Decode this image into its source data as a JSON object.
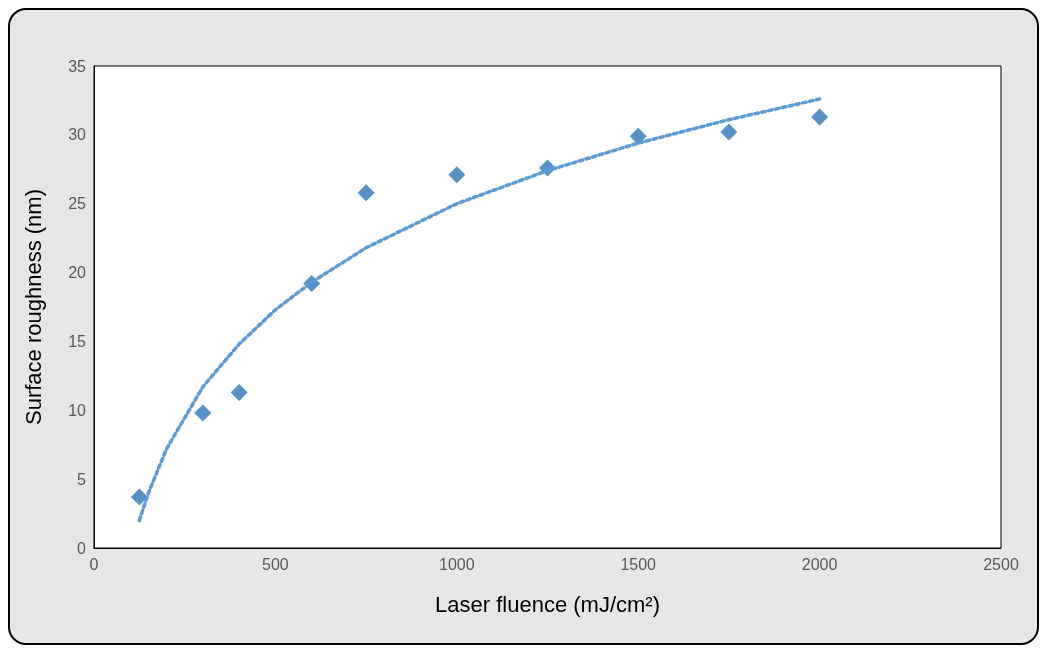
{
  "chart_data": {
    "type": "scatter",
    "xlabel": "Laser fluence (mJ/cm²)",
    "ylabel": "Surface roughness (nm)",
    "marker": "diamond",
    "grid": false,
    "xlim": [
      0,
      2500
    ],
    "xticks": [
      0,
      500,
      1000,
      1500,
      2000,
      2500
    ],
    "ylim": [
      0,
      35
    ],
    "yticks": [
      0,
      5,
      10,
      15,
      20,
      25,
      30,
      35
    ],
    "series": [
      {
        "type": "scatter",
        "color": "#2e75b6",
        "x": [
          125,
          300,
          400,
          600,
          750,
          1000,
          1250,
          1500,
          1750,
          2000
        ],
        "values": [
          3.7,
          9.8,
          11.3,
          19.2,
          25.8,
          27.1,
          27.6,
          29.9,
          30.2,
          31.3
        ]
      },
      {
        "type": "line",
        "color": "#5b9bd5",
        "line_style": "dotted",
        "marker": "none",
        "x": [
          125,
          150,
          200,
          300,
          400,
          500,
          600,
          750,
          1000,
          1250,
          1500,
          1750,
          2000
        ],
        "values": [
          2.0,
          4.0,
          7.2,
          11.7,
          14.8,
          17.3,
          19.3,
          21.8,
          25.0,
          27.4,
          29.4,
          31.1,
          32.6
        ]
      }
    ]
  }
}
